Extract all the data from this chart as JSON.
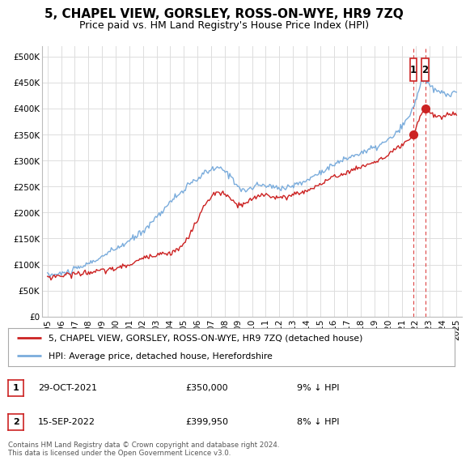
{
  "title": "5, CHAPEL VIEW, GORSLEY, ROSS-ON-WYE, HR9 7ZQ",
  "subtitle": "Price paid vs. HM Land Registry's House Price Index (HPI)",
  "ylabel_ticks": [
    "£0",
    "£50K",
    "£100K",
    "£150K",
    "£200K",
    "£250K",
    "£300K",
    "£350K",
    "£400K",
    "£450K",
    "£500K"
  ],
  "ytick_values": [
    0,
    50000,
    100000,
    150000,
    200000,
    250000,
    300000,
    350000,
    400000,
    450000,
    500000
  ],
  "ylim": [
    0,
    520000
  ],
  "hpi_color": "#7aacdc",
  "property_color": "#cc2222",
  "vline_color": "#dd4444",
  "sale1_x": 2021.83,
  "sale1_y": 350000,
  "sale2_x": 2022.71,
  "sale2_y": 399950,
  "legend_line1": "5, CHAPEL VIEW, GORSLEY, ROSS-ON-WYE, HR9 7ZQ (detached house)",
  "legend_line2": "HPI: Average price, detached house, Herefordshire",
  "table_rows": [
    {
      "num": "1",
      "date": "29-OCT-2021",
      "price": "£350,000",
      "hpi": "9% ↓ HPI"
    },
    {
      "num": "2",
      "date": "15-SEP-2022",
      "price": "£399,950",
      "hpi": "8% ↓ HPI"
    }
  ],
  "footnote": "Contains HM Land Registry data © Crown copyright and database right 2024.\nThis data is licensed under the Open Government Licence v3.0.",
  "bg_color": "#ffffff",
  "grid_color": "#dddddd",
  "title_fontsize": 11,
  "subtitle_fontsize": 9,
  "tick_fontsize": 7.5,
  "x_tick_years": [
    1995,
    1996,
    1997,
    1998,
    1999,
    2000,
    2001,
    2002,
    2003,
    2004,
    2005,
    2006,
    2007,
    2008,
    2009,
    2010,
    2011,
    2012,
    2013,
    2014,
    2015,
    2016,
    2017,
    2018,
    2019,
    2020,
    2021,
    2022,
    2023,
    2024,
    2025
  ]
}
